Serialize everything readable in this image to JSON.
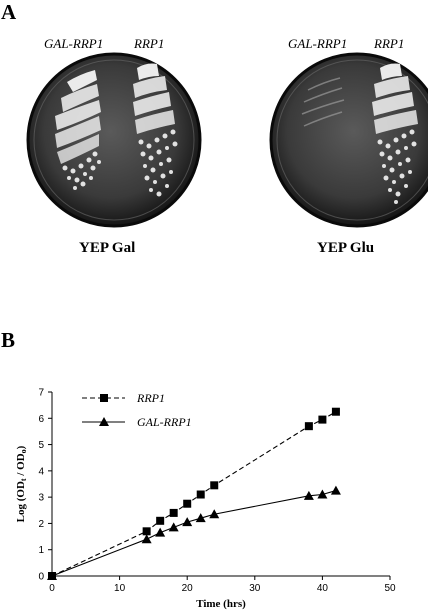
{
  "panel_a": {
    "letter": "A",
    "plates": [
      {
        "strain_left": "GAL-RRP1",
        "strain_right": "RRP1",
        "medium": "YEP Gal"
      },
      {
        "strain_left": "GAL-RRP1",
        "strain_right": "RRP1",
        "medium": "YEP Glu"
      }
    ]
  },
  "panel_b": {
    "letter": "B"
  },
  "chart_data": {
    "type": "line",
    "title": "",
    "xlabel": "Time (hrs)",
    "ylabel": "Log (OD",
    "ylabel_sub1": "t",
    "ylabel_mid": " / OD",
    "ylabel_sub2": "o",
    "ylabel_end": ")",
    "xlim": [
      0,
      50
    ],
    "ylim": [
      0,
      7
    ],
    "xticks": [
      "0",
      "10",
      "20",
      "30",
      "40",
      "50"
    ],
    "yticks": [
      "0",
      "1",
      "2",
      "3",
      "4",
      "5",
      "6",
      "7"
    ],
    "legend_position": "top-left",
    "grid": false,
    "series": [
      {
        "name": "RRP1",
        "marker": "square",
        "line": "dashed",
        "x": [
          0,
          14,
          16,
          18,
          20,
          22,
          24,
          38,
          40,
          42
        ],
        "y": [
          0,
          1.7,
          2.1,
          2.4,
          2.75,
          3.1,
          3.45,
          5.7,
          5.95,
          6.25
        ]
      },
      {
        "name": "GAL-RRP1",
        "marker": "triangle",
        "line": "solid",
        "x": [
          0,
          14,
          16,
          18,
          20,
          22,
          24,
          38,
          40,
          42
        ],
        "y": [
          0,
          1.4,
          1.65,
          1.85,
          2.05,
          2.2,
          2.35,
          3.05,
          3.1,
          3.25
        ]
      }
    ]
  }
}
